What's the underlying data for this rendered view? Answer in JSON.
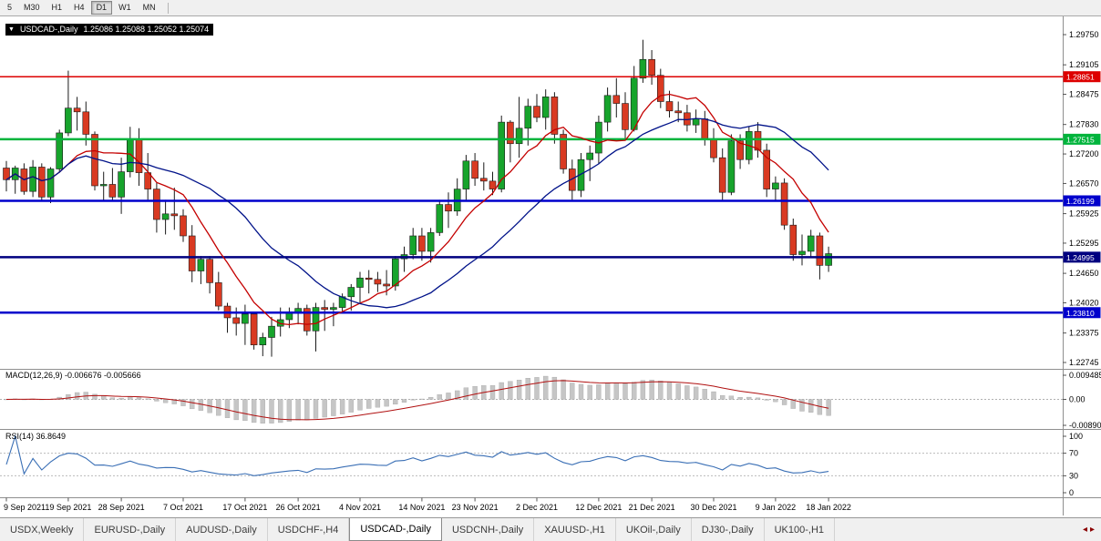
{
  "toolbar": {
    "timeframes": [
      {
        "label": "5",
        "active": false
      },
      {
        "label": "M30",
        "active": false
      },
      {
        "label": "H1",
        "active": false
      },
      {
        "label": "H4",
        "active": false
      },
      {
        "label": "D1",
        "active": true
      },
      {
        "label": "W1",
        "active": false
      },
      {
        "label": "MN",
        "active": false
      }
    ]
  },
  "chart_header": {
    "symbol": "USDCAD-,Daily",
    "ohlc": "1.25086 1.25088 1.25052 1.25074"
  },
  "chart_data": {
    "type": "candlestick",
    "title": "USDCAD-,Daily",
    "symbol": "USDCAD",
    "timeframe": "Daily",
    "candle_up_color": "#17a42c",
    "candle_down_color": "#d93a22",
    "price_axis_labels": [
      "1.29750",
      "1.29105",
      "1.28475",
      "1.27830",
      "1.27200",
      "1.26570",
      "1.25925",
      "1.25295",
      "1.24650",
      "1.24020",
      "1.23375",
      "1.22745"
    ],
    "hlines": [
      {
        "price": 1.28851,
        "label": "1.28851",
        "color": "#dd0000",
        "width": 1.5
      },
      {
        "price": 1.27515,
        "label": "1.27515",
        "color": "#00b43c",
        "width": 2.5
      },
      {
        "price": 1.26199,
        "label": "1.26199",
        "color": "#0000cc",
        "width": 2.5
      },
      {
        "price": 1.24995,
        "label": "1.24995",
        "color": "#000080",
        "width": 2.5
      },
      {
        "price": 1.2381,
        "label": "1.23810",
        "color": "#0000cc",
        "width": 2.5
      }
    ],
    "ma_lines": [
      {
        "name": "ma-fast-red",
        "color": "#c40000",
        "period": 8
      },
      {
        "name": "ma-slow-blue",
        "color": "#001289",
        "period": 21
      }
    ],
    "date_ticks": [
      {
        "label": "9 Sep 2021",
        "index": 0
      },
      {
        "label": "19 Sep 2021",
        "index": 7
      },
      {
        "label": "28 Sep 2021",
        "index": 13
      },
      {
        "label": "7 Oct 2021",
        "index": 20
      },
      {
        "label": "17 Oct 2021",
        "index": 27
      },
      {
        "label": "26 Oct 2021",
        "index": 33
      },
      {
        "label": "4 Nov 2021",
        "index": 40
      },
      {
        "label": "14 Nov 2021",
        "index": 47
      },
      {
        "label": "23 Nov 2021",
        "index": 53
      },
      {
        "label": "2 Dec 2021",
        "index": 60
      },
      {
        "label": "12 Dec 2021",
        "index": 67
      },
      {
        "label": "21 Dec 2021",
        "index": 73
      },
      {
        "label": "30 Dec 2021",
        "index": 80
      },
      {
        "label": "9 Jan 2022",
        "index": 87
      },
      {
        "label": "18 Jan 2022",
        "index": 93
      }
    ],
    "candles_ohlc": [
      [
        1.269,
        1.2705,
        1.264,
        1.2665
      ],
      [
        1.2665,
        1.2695,
        1.2635,
        1.269
      ],
      [
        1.2688,
        1.27,
        1.2633,
        1.264
      ],
      [
        1.264,
        1.2707,
        1.2628,
        1.2692
      ],
      [
        1.2692,
        1.27,
        1.262,
        1.2628
      ],
      [
        1.2628,
        1.2692,
        1.2615,
        1.2688
      ],
      [
        1.2688,
        1.2772,
        1.268,
        1.2765
      ],
      [
        1.2765,
        1.2898,
        1.2758,
        1.2818
      ],
      [
        1.2818,
        1.2842,
        1.277,
        1.281
      ],
      [
        1.281,
        1.2832,
        1.2738,
        1.2762
      ],
      [
        1.2762,
        1.2768,
        1.2642,
        1.2652
      ],
      [
        1.2652,
        1.2682,
        1.2618,
        1.2655
      ],
      [
        1.2655,
        1.269,
        1.262,
        1.2628
      ],
      [
        1.2628,
        1.2712,
        1.2592,
        1.2682
      ],
      [
        1.2682,
        1.2778,
        1.267,
        1.2752
      ],
      [
        1.2752,
        1.2775,
        1.2652,
        1.268
      ],
      [
        1.268,
        1.2722,
        1.2622,
        1.2645
      ],
      [
        1.2645,
        1.2658,
        1.2552,
        1.258
      ],
      [
        1.258,
        1.2622,
        1.2548,
        1.2592
      ],
      [
        1.2592,
        1.2648,
        1.2558,
        1.2588
      ],
      [
        1.2588,
        1.2602,
        1.2532,
        1.2545
      ],
      [
        1.2545,
        1.2568,
        1.2446,
        1.247
      ],
      [
        1.247,
        1.2502,
        1.2442,
        1.2495
      ],
      [
        1.2495,
        1.2502,
        1.2422,
        1.2445
      ],
      [
        1.2445,
        1.2468,
        1.2386,
        1.2395
      ],
      [
        1.2395,
        1.2402,
        1.2338,
        1.237
      ],
      [
        1.237,
        1.2392,
        1.2332,
        1.2358
      ],
      [
        1.2358,
        1.2398,
        1.2312,
        1.2378
      ],
      [
        1.2378,
        1.2382,
        1.2302,
        1.2312
      ],
      [
        1.2312,
        1.2338,
        1.2288,
        1.2328
      ],
      [
        1.2328,
        1.2372,
        1.2287,
        1.2352
      ],
      [
        1.2352,
        1.2392,
        1.233,
        1.2366
      ],
      [
        1.2366,
        1.2392,
        1.2348,
        1.238
      ],
      [
        1.238,
        1.2402,
        1.2356,
        1.239
      ],
      [
        1.239,
        1.2398,
        1.2332,
        1.2342
      ],
      [
        1.2342,
        1.2402,
        1.2298,
        1.2392
      ],
      [
        1.2392,
        1.2408,
        1.2342,
        1.2388
      ],
      [
        1.2388,
        1.2402,
        1.2352,
        1.2392
      ],
      [
        1.2392,
        1.2422,
        1.238,
        1.2415
      ],
      [
        1.2415,
        1.2442,
        1.2385,
        1.2435
      ],
      [
        1.2435,
        1.2468,
        1.2402,
        1.2455
      ],
      [
        1.2455,
        1.2472,
        1.2422,
        1.2452
      ],
      [
        1.2452,
        1.2468,
        1.2425,
        1.2442
      ],
      [
        1.2442,
        1.2472,
        1.2418,
        1.2438
      ],
      [
        1.2438,
        1.2502,
        1.2428,
        1.2496
      ],
      [
        1.2496,
        1.2522,
        1.2468,
        1.2505
      ],
      [
        1.2505,
        1.2562,
        1.2495,
        1.2545
      ],
      [
        1.2545,
        1.2562,
        1.2492,
        1.2512
      ],
      [
        1.2512,
        1.2562,
        1.2488,
        1.2552
      ],
      [
        1.2552,
        1.2622,
        1.2545,
        1.2612
      ],
      [
        1.2612,
        1.2638,
        1.2562,
        1.2598
      ],
      [
        1.2598,
        1.2668,
        1.2588,
        1.2645
      ],
      [
        1.2645,
        1.2718,
        1.2622,
        1.2705
      ],
      [
        1.2705,
        1.2722,
        1.2652,
        1.2668
      ],
      [
        1.2668,
        1.2702,
        1.2642,
        1.2662
      ],
      [
        1.2662,
        1.2682,
        1.2632,
        1.2645
      ],
      [
        1.2645,
        1.2802,
        1.2638,
        1.2788
      ],
      [
        1.2788,
        1.2792,
        1.2702,
        1.2742
      ],
      [
        1.2742,
        1.2842,
        1.2712,
        1.2775
      ],
      [
        1.2775,
        1.2838,
        1.2738,
        1.2822
      ],
      [
        1.2822,
        1.2848,
        1.2788,
        1.2798
      ],
      [
        1.2798,
        1.2858,
        1.2772,
        1.2842
      ],
      [
        1.2842,
        1.2852,
        1.2742,
        1.2762
      ],
      [
        1.2762,
        1.2772,
        1.2678,
        1.2688
      ],
      [
        1.2688,
        1.2708,
        1.2622,
        1.2642
      ],
      [
        1.2642,
        1.2722,
        1.2628,
        1.2708
      ],
      [
        1.2708,
        1.2738,
        1.2662,
        1.2722
      ],
      [
        1.2722,
        1.2802,
        1.2698,
        1.2788
      ],
      [
        1.2788,
        1.2862,
        1.2768,
        1.2845
      ],
      [
        1.2845,
        1.2882,
        1.2798,
        1.2828
      ],
      [
        1.2828,
        1.2852,
        1.2752,
        1.2772
      ],
      [
        1.2772,
        1.2908,
        1.2768,
        1.2882
      ],
      [
        1.2882,
        1.2964,
        1.2872,
        1.2922
      ],
      [
        1.2922,
        1.2942,
        1.2868,
        1.2888
      ],
      [
        1.2888,
        1.2902,
        1.2818,
        1.2832
      ],
      [
        1.2832,
        1.2855,
        1.2798,
        1.2812
      ],
      [
        1.2812,
        1.2832,
        1.2788,
        1.2808
      ],
      [
        1.2808,
        1.2825,
        1.2768,
        1.2782
      ],
      [
        1.2782,
        1.2815,
        1.2765,
        1.2795
      ],
      [
        1.2795,
        1.2812,
        1.2738,
        1.2752
      ],
      [
        1.2752,
        1.2775,
        1.2702,
        1.2712
      ],
      [
        1.2712,
        1.2732,
        1.2622,
        1.2638
      ],
      [
        1.2638,
        1.2762,
        1.2632,
        1.2748
      ],
      [
        1.2748,
        1.2762,
        1.2688,
        1.2708
      ],
      [
        1.2708,
        1.2778,
        1.2698,
        1.2768
      ],
      [
        1.2768,
        1.2788,
        1.2712,
        1.2728
      ],
      [
        1.2728,
        1.2742,
        1.2628,
        1.2645
      ],
      [
        1.2645,
        1.2672,
        1.2618,
        1.2658
      ],
      [
        1.2658,
        1.2668,
        1.2558,
        1.2568
      ],
      [
        1.2568,
        1.2582,
        1.2492,
        1.2505
      ],
      [
        1.2505,
        1.2548,
        1.2482,
        1.2512
      ],
      [
        1.2512,
        1.2558,
        1.2498,
        1.2545
      ],
      [
        1.2545,
        1.2552,
        1.2452,
        1.2482
      ],
      [
        1.2482,
        1.2522,
        1.2468,
        1.2507
      ]
    ]
  },
  "macd_panel": {
    "label": "MACD(12,26,9) -0.006676 -0.005666",
    "axis_labels": [
      "0.009485",
      "0.00",
      "-0.008902"
    ],
    "fast": 12,
    "slow": 26,
    "signal": 9,
    "histogram_color": "#c6c6c6",
    "signal_color": "#b01010"
  },
  "rsi_panel": {
    "label": "RSI(14) 36.8649",
    "axis_labels": [
      "100",
      "70",
      "30",
      "0"
    ],
    "levels": [
      70,
      30
    ],
    "period": 14,
    "line_color": "#3a6fb5"
  },
  "tabs": [
    {
      "label": "USDX,Weekly",
      "active": false
    },
    {
      "label": "EURUSD-,Daily",
      "active": false
    },
    {
      "label": "AUDUSD-,Daily",
      "active": false
    },
    {
      "label": "USDCHF-,H4",
      "active": false
    },
    {
      "label": "USDCAD-,Daily",
      "active": true
    },
    {
      "label": "USDCNH-,Daily",
      "active": false
    },
    {
      "label": "XAUUSD-,H1",
      "active": false
    },
    {
      "label": "UKOil-,Daily",
      "active": false
    },
    {
      "label": "DJ30-,Daily",
      "active": false
    },
    {
      "label": "UK100-,H1",
      "active": false
    }
  ]
}
